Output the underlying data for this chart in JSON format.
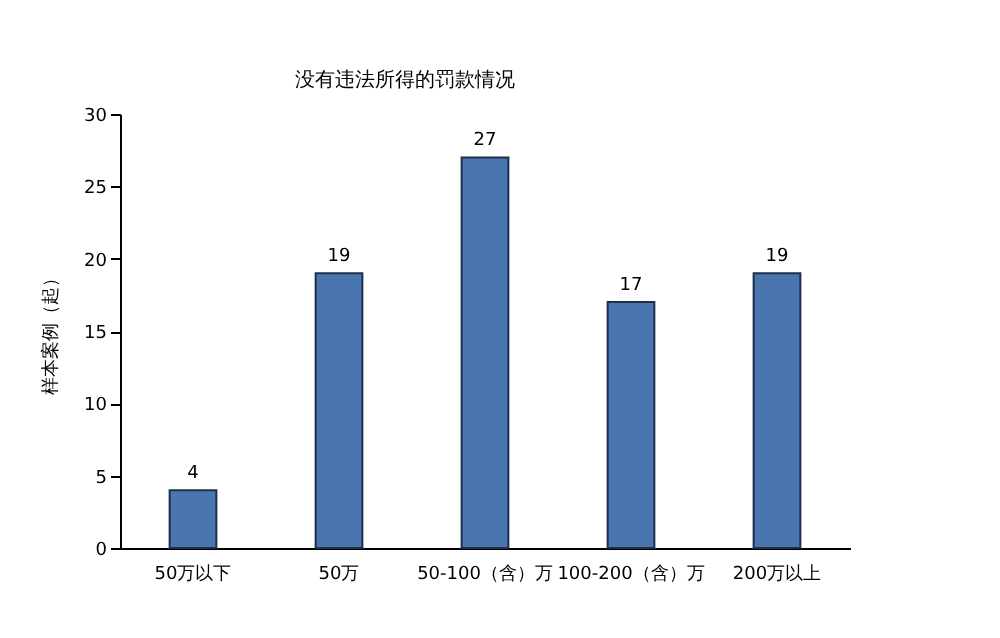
{
  "chart_data": {
    "type": "bar",
    "title": "没有违法所得的罚款情况",
    "ylabel": "样本案例（起）",
    "categories": [
      "50万以下",
      "50万",
      "50-100（含）万",
      "100-200（含）万",
      "200万以上"
    ],
    "values": [
      4,
      19,
      27,
      17,
      19
    ],
    "color": "#4a76b0",
    "ylim": [
      0,
      30
    ],
    "yticks": [
      0,
      5,
      10,
      15,
      20,
      25,
      30
    ],
    "grid": false,
    "data_labels": true
  }
}
